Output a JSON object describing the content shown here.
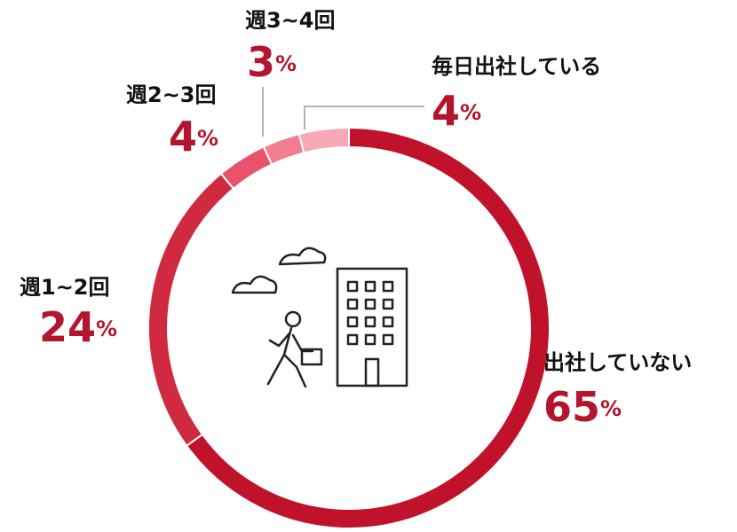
{
  "chart_data": {
    "type": "donut",
    "categories": [
      "出社していない",
      "週1~2回",
      "週2~3回",
      "週3~4回",
      "毎日出社している"
    ],
    "values": [
      65,
      24,
      4,
      3,
      4
    ],
    "value_labels": [
      "65%",
      "24%",
      "4%",
      "3%",
      "4%"
    ],
    "colors": [
      "#c0122a",
      "#d02a40",
      "#e8526a",
      "#f27d8f",
      "#f9a9b5"
    ],
    "label_color": "#b3162c"
  }
}
